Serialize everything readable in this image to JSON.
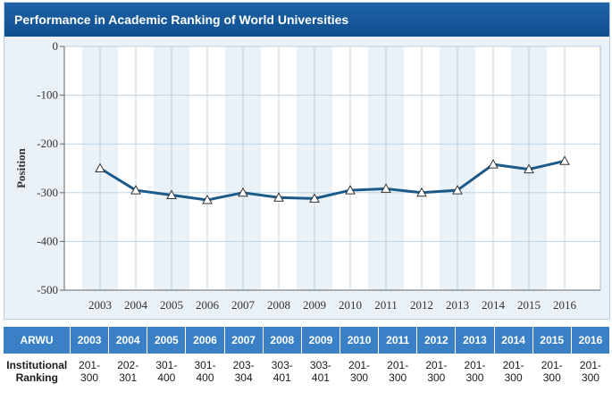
{
  "title": "Performance in Academic Ranking of World Universities",
  "chart_data": {
    "type": "line",
    "x": [
      "2003",
      "2004",
      "2005",
      "2006",
      "2007",
      "2008",
      "2009",
      "2010",
      "2011",
      "2012",
      "2013",
      "2014",
      "2015",
      "2016"
    ],
    "series": [
      {
        "values": [
          -250,
          -295,
          -305,
          -315,
          -300,
          -310,
          -312,
          -295,
          -292,
          -300,
          -295,
          -242,
          -252,
          -235
        ]
      }
    ],
    "ylabel": "Position",
    "ylim": [
      -500,
      0
    ],
    "yticks": [
      "0",
      "-100",
      "-200",
      "-300",
      "-400",
      "-500"
    ],
    "grid": true,
    "line_color": "#1c5a8a",
    "marker": "triangle"
  },
  "table": {
    "header_label": "ARWU",
    "years": [
      "2003",
      "2004",
      "2005",
      "2006",
      "2007",
      "2008",
      "2009",
      "2010",
      "2011",
      "2012",
      "2013",
      "2014",
      "2015",
      "2016"
    ],
    "row_label": "Institutional Ranking",
    "rankings": [
      "201-\n300",
      "202-\n301",
      "301-\n400",
      "301-\n400",
      "203-\n304",
      "303-\n401",
      "303-\n401",
      "201-\n300",
      "201-\n300",
      "201-\n300",
      "201-\n300",
      "201-\n300",
      "201-\n300",
      "201-\n300"
    ]
  },
  "colors": {
    "title_bar": "#0e4f90",
    "table_header": "#3a80c6",
    "plot_background": "#eaf2f8"
  }
}
